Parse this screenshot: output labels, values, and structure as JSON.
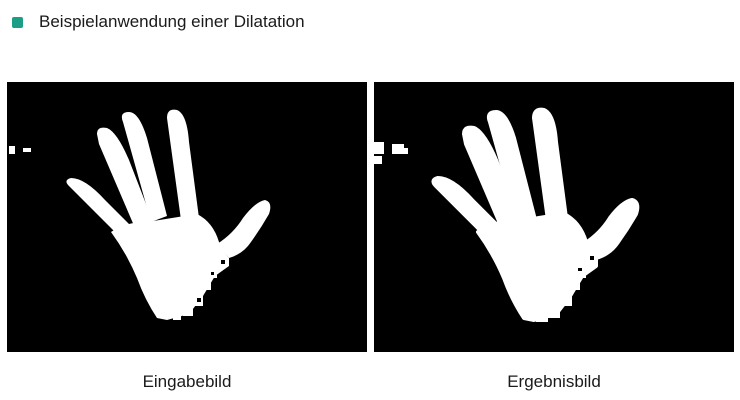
{
  "slide": {
    "bullet_text": "Beispielanwendung einer Dilatation",
    "bullet_color": "#1a9e86"
  },
  "figures": {
    "input": {
      "caption": "Eingabebild",
      "background": "#000000",
      "foreground": "#ffffff"
    },
    "output": {
      "caption": "Ergebnisbild",
      "background": "#000000",
      "foreground": "#ffffff"
    }
  }
}
